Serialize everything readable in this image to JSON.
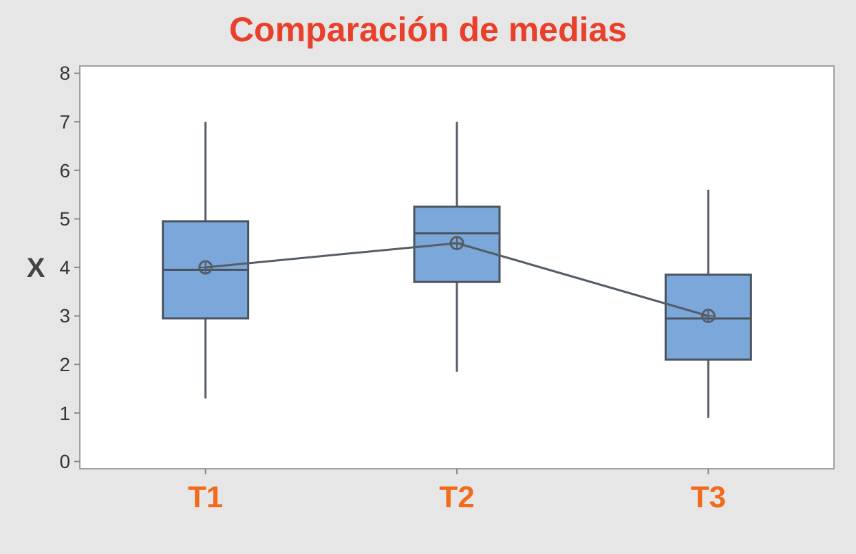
{
  "chart_data": {
    "type": "box",
    "title": "Comparación de medias",
    "ylabel": "X",
    "categories": [
      "T1",
      "T2",
      "T3"
    ],
    "ylim": [
      -0.15,
      8.15
    ],
    "yticks": [
      0,
      1,
      2,
      3,
      4,
      5,
      6,
      7,
      8
    ],
    "grid": false,
    "series": [
      {
        "color": "#7ba7da",
        "boxes": [
          {
            "low": 1.3,
            "q1": 2.95,
            "median": 3.95,
            "q3": 4.95,
            "high": 7
          },
          {
            "low": 1.85,
            "q1": 3.7,
            "median": 4.7,
            "q3": 5.25,
            "high": 7
          },
          {
            "low": 0.9,
            "q1": 2.1,
            "median": 2.95,
            "q3": 3.85,
            "high": 5.6
          }
        ]
      },
      {
        "type": "line",
        "x": [
          "T1",
          "T2",
          "T3"
        ],
        "values": [
          4,
          4.5,
          3
        ],
        "color": "#555d66",
        "marker": "circle"
      }
    ]
  }
}
